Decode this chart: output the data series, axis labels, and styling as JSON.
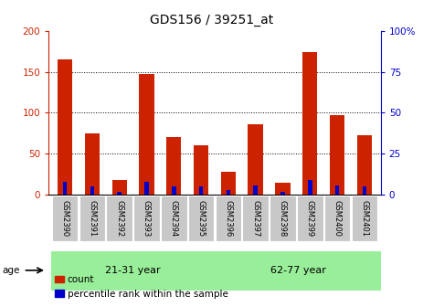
{
  "title": "GDS156 / 39251_at",
  "samples": [
    "GSM2390",
    "GSM2391",
    "GSM2392",
    "GSM2393",
    "GSM2394",
    "GSM2395",
    "GSM2396",
    "GSM2397",
    "GSM2398",
    "GSM2399",
    "GSM2400",
    "GSM2401"
  ],
  "red_values": [
    165,
    75,
    18,
    147,
    70,
    61,
    28,
    86,
    15,
    174,
    97,
    73
  ],
  "blue_values_pct": [
    8,
    5,
    2,
    8,
    5,
    5,
    3,
    6,
    2,
    9,
    6,
    5
  ],
  "ylim_left": [
    0,
    200
  ],
  "ylim_right": [
    0,
    100
  ],
  "yticks_left": [
    0,
    50,
    100,
    150,
    200
  ],
  "yticks_right": [
    0,
    25,
    50,
    75,
    100
  ],
  "group1_label": "21-31 year",
  "group2_label": "62-77 year",
  "age_label": "age",
  "red_color": "#cc2200",
  "blue_color": "#0000cc",
  "group_bg_color": "#99ee99",
  "tick_label_bg": "#c8c8c8",
  "title_fontsize": 10,
  "axis_fontsize": 7.5,
  "legend_fontsize": 7.5,
  "background_color": "#ffffff"
}
